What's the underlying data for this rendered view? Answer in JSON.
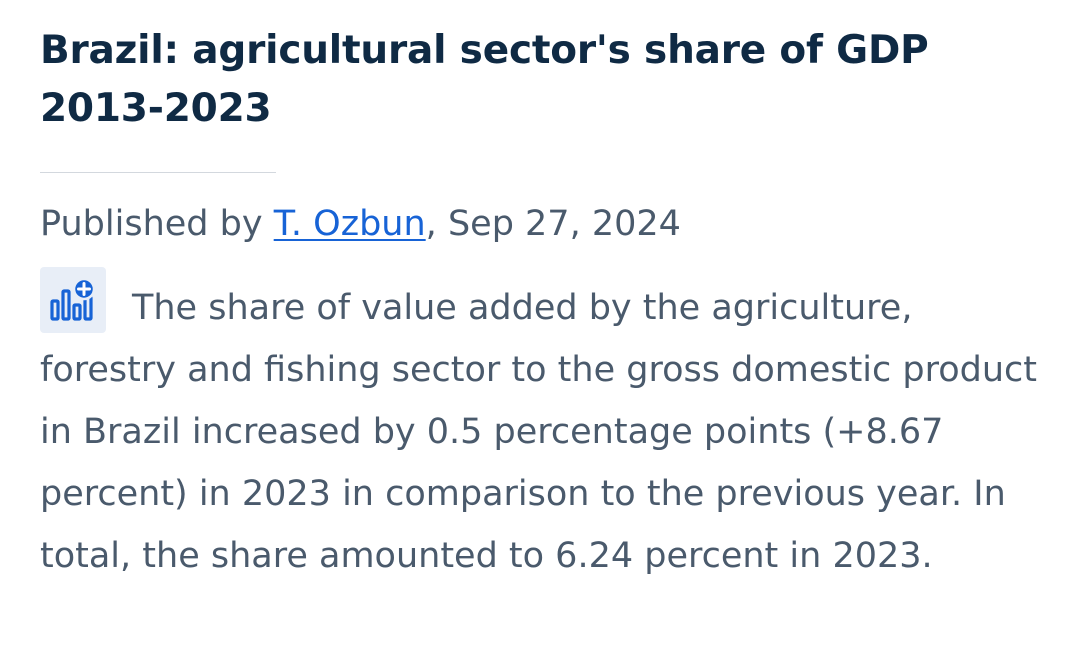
{
  "header": {
    "title": "Brazil: agricultural sector's share of GDP 2013-2023"
  },
  "byline": {
    "prefix": "Published by ",
    "author": "T. Ozbun",
    "separator": ", ",
    "date": "Sep 27, 2024"
  },
  "description": {
    "icon": "chart-plus-icon",
    "text": "The share of value added by the agriculture, forestry and fishing sector to the gross domestic product in Brazil increased by 0.5 percentage points (+8.67 percent) in 2023 in comparison to the previous year. In total, the share amounted to 6.24 percent in 2023."
  },
  "colors": {
    "title": "#0f2a44",
    "body_text": "#4a5a6c",
    "link": "#1763d6",
    "icon_bg": "#e8eef7",
    "icon_fg": "#1763d6"
  }
}
